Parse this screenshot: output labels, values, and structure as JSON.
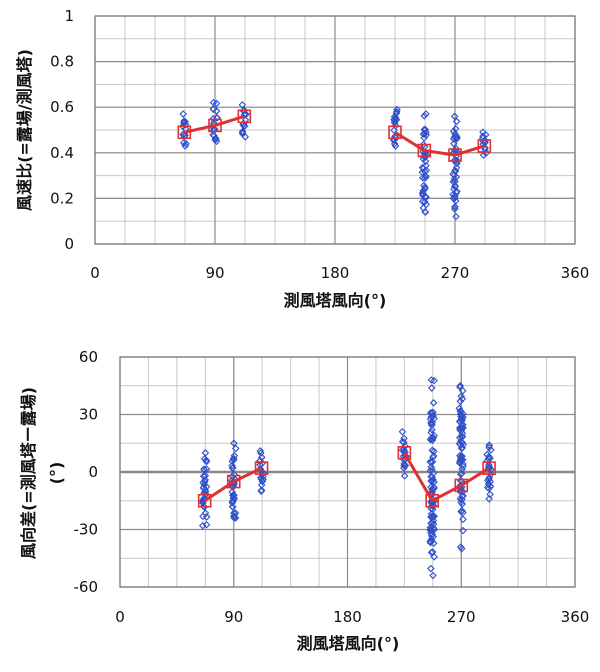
{
  "chart_data": [
    {
      "type": "scatter",
      "xlabel": "測風塔風向(°)",
      "ylabel": "風速比(=露場/測風塔)",
      "xlim": [
        0,
        360
      ],
      "ylim": [
        0,
        1
      ],
      "x_ticks": [
        0,
        90,
        180,
        270,
        360
      ],
      "y_ticks": [
        0,
        0.2,
        0.4,
        0.6,
        0.8,
        1
      ],
      "y_tick_labels": [
        "0",
        "0.2",
        "0.4",
        "0.6",
        "0.8",
        "1"
      ],
      "grid": true,
      "colors": {
        "points": "#3050c8",
        "mean_line": "#e03030",
        "mean_marker": "#e03030"
      },
      "scatter_columns": [
        {
          "x": 67,
          "min": 0.43,
          "max": 0.57
        },
        {
          "x": 90,
          "min": 0.45,
          "max": 0.62
        },
        {
          "x": 112,
          "min": 0.47,
          "max": 0.61
        },
        {
          "x": 225,
          "min": 0.43,
          "max": 0.59
        },
        {
          "x": 247,
          "min": 0.14,
          "max": 0.57
        },
        {
          "x": 270,
          "min": 0.12,
          "max": 0.56
        },
        {
          "x": 292,
          "min": 0.39,
          "max": 0.49
        }
      ],
      "mean_series": [
        [
          {
            "x": 67,
            "y": 0.49
          },
          {
            "x": 90,
            "y": 0.52
          },
          {
            "x": 112,
            "y": 0.56
          }
        ],
        [
          {
            "x": 225,
            "y": 0.49
          },
          {
            "x": 247,
            "y": 0.41
          },
          {
            "x": 270,
            "y": 0.39
          },
          {
            "x": 292,
            "y": 0.43
          }
        ]
      ]
    },
    {
      "type": "scatter",
      "xlabel": "測風塔風向(°)",
      "ylabel": "風向差(=測風塔ー露場)",
      "ylabel2": "(°)",
      "xlim": [
        0,
        360
      ],
      "ylim": [
        -60,
        60
      ],
      "x_ticks": [
        0,
        90,
        180,
        270,
        360
      ],
      "y_ticks": [
        -60,
        -30,
        0,
        30,
        60
      ],
      "y_tick_labels": [
        "-60",
        "-30",
        "0",
        "30",
        "60"
      ],
      "grid": true,
      "zero_line": true,
      "colors": {
        "points": "#3050c8",
        "mean_line": "#e03030",
        "mean_marker": "#e03030"
      },
      "scatter_columns": [
        {
          "x": 67,
          "min": -28,
          "max": 10
        },
        {
          "x": 90,
          "min": -24,
          "max": 15
        },
        {
          "x": 112,
          "min": -10,
          "max": 11
        },
        {
          "x": 225,
          "min": -2,
          "max": 21
        },
        {
          "x": 247,
          "min": -54,
          "max": 48
        },
        {
          "x": 270,
          "min": -40,
          "max": 45
        },
        {
          "x": 292,
          "min": -14,
          "max": 14
        }
      ],
      "mean_series": [
        [
          {
            "x": 67,
            "y": -15
          },
          {
            "x": 90,
            "y": -5
          },
          {
            "x": 112,
            "y": 2
          }
        ],
        [
          {
            "x": 225,
            "y": 10
          },
          {
            "x": 247,
            "y": -15
          },
          {
            "x": 270,
            "y": -7
          },
          {
            "x": 292,
            "y": 2
          }
        ]
      ]
    }
  ]
}
